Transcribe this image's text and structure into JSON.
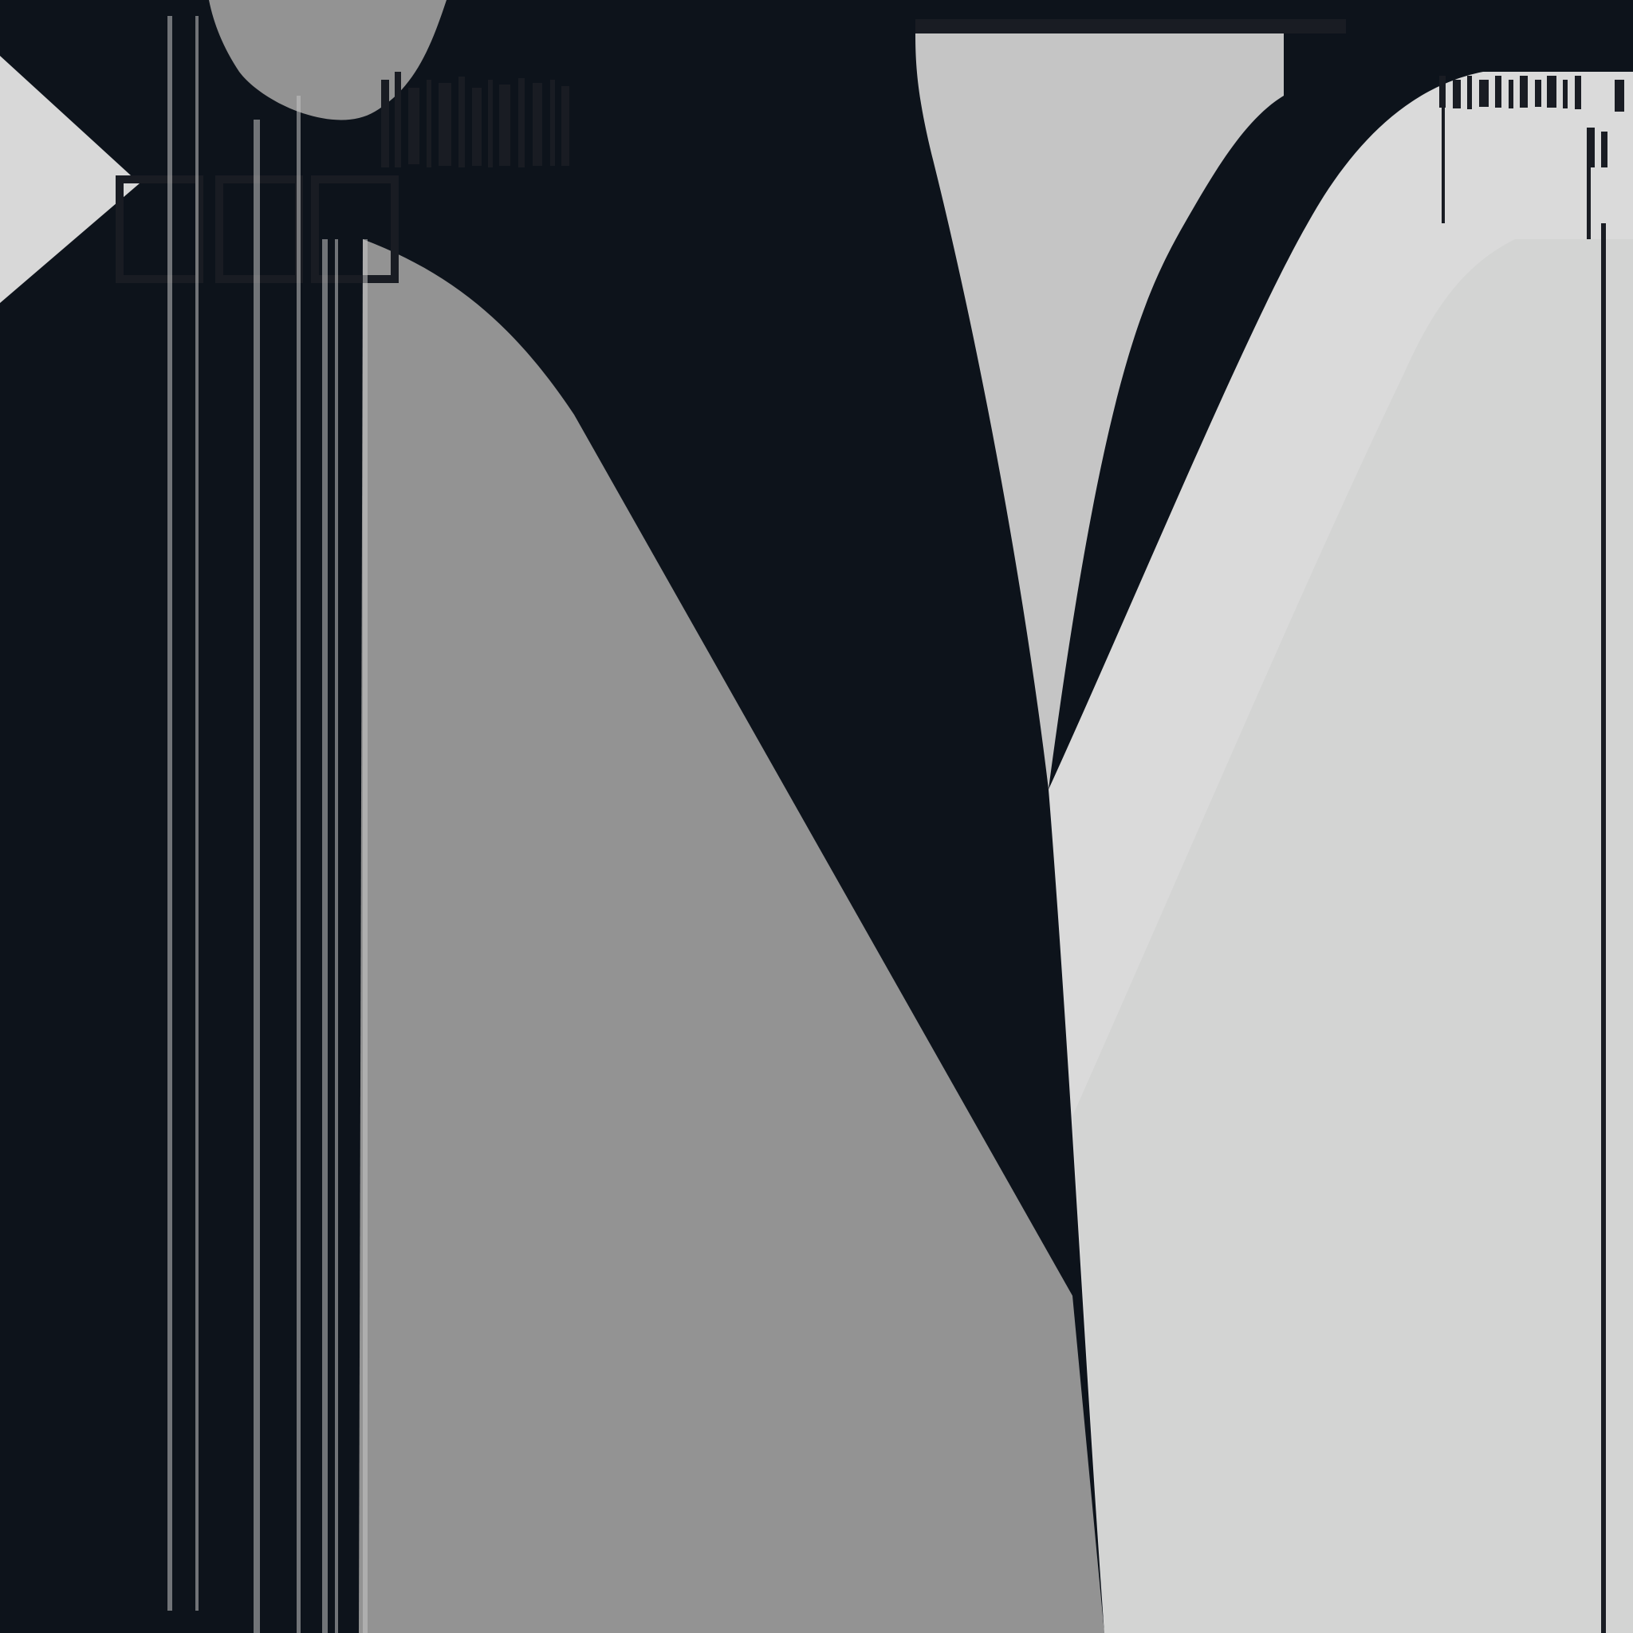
{
  "palette": {
    "background": "#0d131b",
    "dark_stroke": "#191c23",
    "mid_gray": "#939393",
    "light_gray": "#c5c5c5",
    "pale_gray": "#d3d4d3",
    "pale_gray_2": "#dadada",
    "wedge_gray": "#d8d8d8"
  }
}
